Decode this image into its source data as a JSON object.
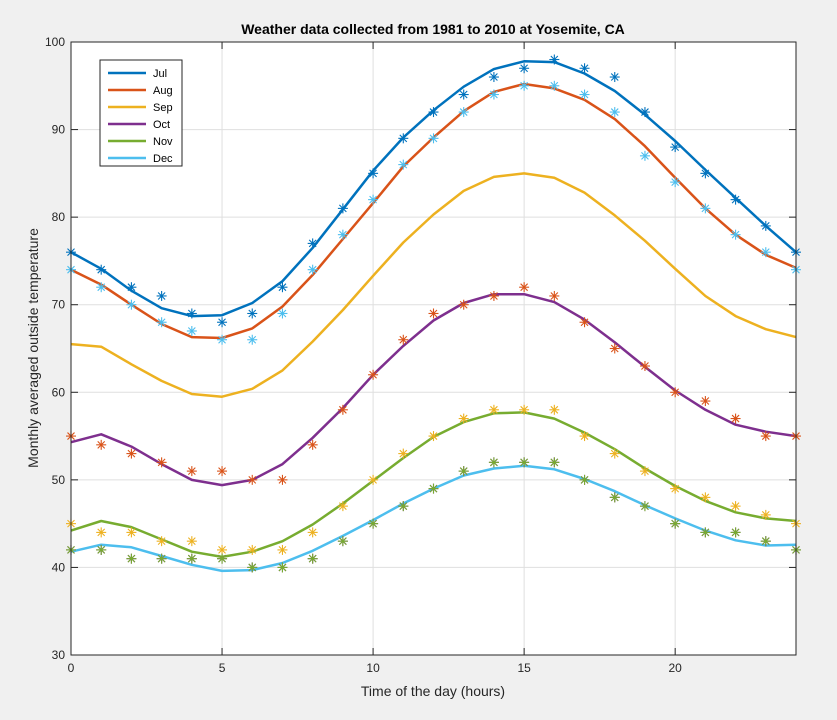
{
  "chart_data": {
    "type": "line",
    "title": "Weather data collected from 1981 to 2010 at Yosemite, CA",
    "xlabel": "Time of the day (hours)",
    "ylabel": "Monthly averaged outside temperature",
    "xlim": [
      0,
      24
    ],
    "ylim": [
      30,
      100
    ],
    "xticks": [
      0,
      5,
      10,
      15,
      20
    ],
    "yticks": [
      30,
      40,
      50,
      60,
      70,
      80,
      90,
      100
    ],
    "grid": true,
    "legend_position": "top-left",
    "series": [
      {
        "name": "Jul",
        "color": "#0072bd",
        "fit": [
          76.0,
          74.1,
          71.6,
          69.6,
          68.7,
          68.8,
          70.2,
          72.7,
          76.5,
          80.9,
          85.3,
          89.1,
          92.2,
          94.9,
          96.9,
          97.8,
          97.7,
          96.4,
          94.4,
          91.7,
          88.7,
          85.4,
          82.2,
          79.0,
          76.0
        ],
        "observed": [
          74,
          72,
          70,
          68,
          67,
          66,
          66,
          69,
          74,
          78,
          82,
          86,
          89,
          92,
          94,
          95,
          95,
          94,
          92,
          87,
          84,
          81,
          78,
          76,
          74
        ]
      },
      {
        "name": "Aug",
        "color": "#d95319",
        "fit": [
          74.0,
          72.3,
          70.0,
          67.8,
          66.3,
          66.2,
          67.3,
          69.8,
          73.4,
          77.5,
          81.6,
          85.8,
          89.1,
          92.1,
          94.3,
          95.2,
          94.7,
          93.4,
          91.2,
          88.1,
          84.5,
          81.0,
          78.0,
          75.7,
          74.2
        ],
        "observed": [
          76,
          74,
          72,
          71,
          69,
          68,
          69,
          72,
          77,
          81,
          85,
          89,
          92,
          94,
          96,
          97,
          98,
          97,
          96,
          92,
          88,
          85,
          82,
          79,
          76
        ]
      },
      {
        "name": "Sep",
        "color": "#edb120",
        "fit": [
          65.5,
          65.2,
          63.2,
          61.3,
          59.8,
          59.5,
          60.4,
          62.5,
          65.8,
          69.4,
          73.3,
          77.1,
          80.3,
          83.0,
          84.6,
          85.0,
          84.5,
          82.8,
          80.2,
          77.3,
          74.1,
          71.0,
          68.7,
          67.2,
          66.3
        ],
        "observed": [
          55,
          54,
          53,
          52,
          51,
          51,
          50,
          50,
          54,
          58,
          62,
          66,
          69,
          70,
          71,
          72,
          71,
          68,
          65,
          63,
          60,
          59,
          57,
          55,
          55
        ]
      },
      {
        "name": "Oct",
        "color": "#7e2f8e",
        "fit": [
          54.3,
          55.2,
          53.8,
          51.8,
          50.0,
          49.4,
          50.0,
          51.8,
          54.8,
          58.2,
          62.0,
          65.3,
          68.2,
          70.2,
          71.2,
          71.2,
          70.3,
          68.3,
          65.7,
          62.9,
          60.2,
          58.0,
          56.3,
          55.5,
          55.0
        ],
        "observed": [
          45,
          44,
          44,
          43,
          43,
          42,
          42,
          42,
          44,
          47,
          50,
          53,
          55,
          57,
          58,
          58,
          58,
          55,
          53,
          51,
          49,
          48,
          47,
          46,
          45
        ]
      },
      {
        "name": "Nov",
        "color": "#77ac30",
        "fit": [
          44.2,
          45.3,
          44.6,
          43.2,
          41.8,
          41.2,
          41.8,
          43.0,
          44.9,
          47.3,
          49.9,
          52.5,
          54.9,
          56.6,
          57.6,
          57.7,
          57.0,
          55.4,
          53.5,
          51.3,
          49.3,
          47.6,
          46.3,
          45.6,
          45.3
        ],
        "observed": [
          42,
          42,
          41,
          41,
          41,
          41,
          40,
          40,
          41,
          43,
          45,
          47,
          49,
          51,
          52,
          52,
          52,
          50,
          48,
          47,
          45,
          44,
          44,
          43,
          42
        ]
      },
      {
        "name": "Dec",
        "color": "#4dbeee",
        "fit": [
          41.8,
          42.6,
          42.3,
          41.3,
          40.3,
          39.6,
          39.7,
          40.5,
          41.9,
          43.6,
          45.4,
          47.3,
          49.0,
          50.5,
          51.3,
          51.6,
          51.2,
          50.1,
          48.7,
          47.1,
          45.6,
          44.2,
          43.1,
          42.5,
          42.6
        ],
        "observed": [
          42,
          42,
          41,
          41,
          41,
          41,
          40,
          40,
          41,
          43,
          45,
          47,
          49,
          51,
          52,
          52,
          52,
          50,
          48,
          47,
          45,
          44,
          44,
          43,
          42
        ]
      }
    ]
  }
}
